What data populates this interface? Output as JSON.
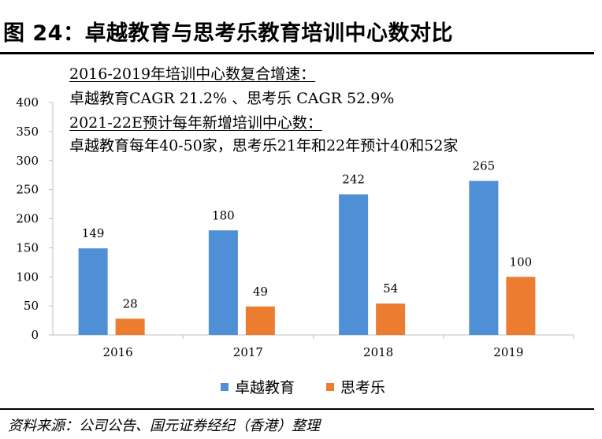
{
  "header": {
    "title": "图 24：卓越教育与思考乐教育培训中心数对比"
  },
  "annotations": {
    "line1": "2016-2019年培训中心数复合增速：",
    "line2": "卓越教育CAGR 21.2% 、思考乐 CAGR    52.9%",
    "line3": "2021-22E预计每年新增培训中心数：",
    "line4": "卓越教育每年40-50家，思考乐21年和22年预计40和52家"
  },
  "footer": {
    "source": "资料来源：公司公告、国元证券经纪（香港）整理"
  },
  "colors": {
    "series1": "#4f8fd6",
    "series2": "#ec7c30"
  },
  "chart_data": {
    "type": "bar",
    "title": "",
    "xlabel": "",
    "ylabel": "",
    "categories": [
      "2016",
      "2017",
      "2018",
      "2019"
    ],
    "series": [
      {
        "name": "卓越教育",
        "values": [
          149,
          180,
          242,
          265
        ]
      },
      {
        "name": "思考乐",
        "values": [
          28,
          49,
          54,
          100
        ]
      }
    ],
    "ylim": [
      0,
      400
    ],
    "yticks": [
      0,
      50,
      100,
      150,
      200,
      250,
      300,
      350,
      400
    ],
    "legend_position": "bottom",
    "grid": false
  }
}
